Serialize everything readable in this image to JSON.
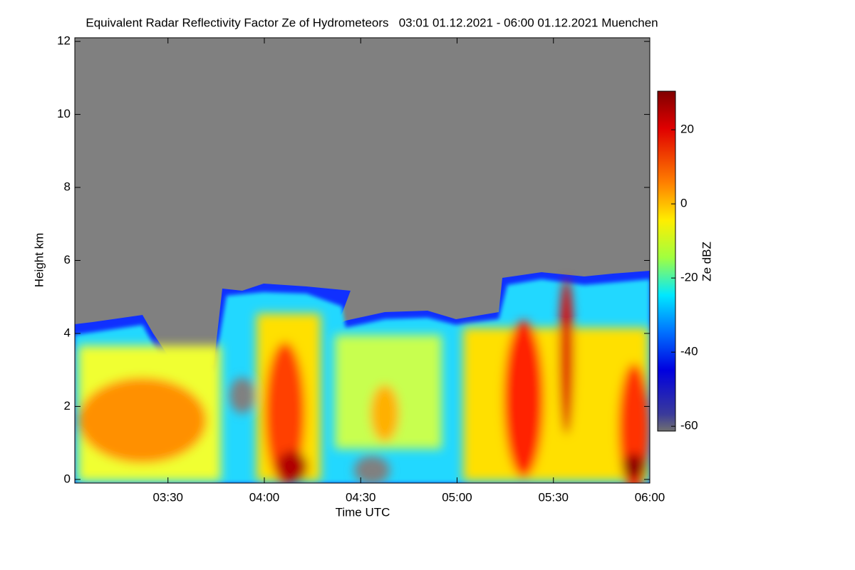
{
  "chart_data": {
    "type": "heatmap",
    "title": "Equivalent Radar Reflectivity Factor Ze of Hydrometeors   03:01 01.12.2021 - 06:00 01.12.2021 Muenchen",
    "x_label": "Time UTC",
    "y_label": "Height km",
    "colorbar_label": "Ze dBZ",
    "xlim": [
      "03:01",
      "06:00"
    ],
    "xticks": [
      "03:30",
      "04:00",
      "04:30",
      "05:00",
      "05:30",
      "06:00"
    ],
    "ylim": [
      -0.1,
      12.1
    ],
    "yticks": [
      0,
      2,
      4,
      6,
      8,
      10,
      12
    ],
    "zlim": [
      -61.3,
      30.4
    ],
    "zticks": [
      20,
      0,
      -20,
      -40,
      -60
    ]
  }
}
